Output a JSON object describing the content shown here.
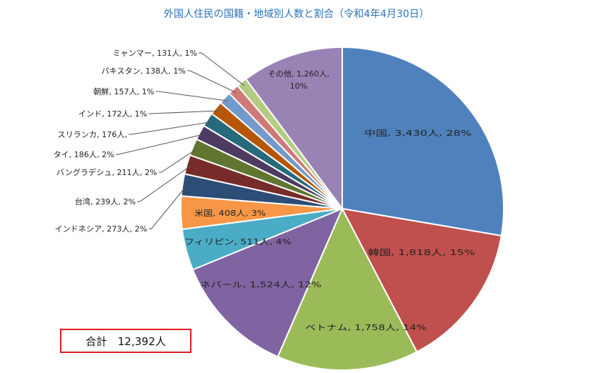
{
  "chart_data": {
    "type": "pie",
    "title": "外国人住民の国籍・地域別人数と割合（令和4年4月30日）",
    "unit": "人",
    "slices": [
      {
        "name": "中国",
        "value": 3430,
        "label": "中国, 3,430人, 28%",
        "color": "#4f81bd"
      },
      {
        "name": "韓国",
        "value": 1818,
        "label": "韓国, 1,818人, 15%",
        "color": "#c0504d"
      },
      {
        "name": "ベトナム",
        "value": 1758,
        "label": "ベトナム, 1,758人, 14%",
        "color": "#9bbb59"
      },
      {
        "name": "ネパール",
        "value": 1524,
        "label": "ネパール, 1,524人, 12%",
        "color": "#8064a2"
      },
      {
        "name": "フィリピン",
        "value": 511,
        "label": "フィリピン, 511人, 4%",
        "color": "#4bacc6"
      },
      {
        "name": "米国",
        "value": 408,
        "label": "米国, 408人, 3%",
        "color": "#f79646"
      },
      {
        "name": "インドネシア",
        "value": 273,
        "label": "インドネシア, 273人, 2%",
        "color": "#2c4d75"
      },
      {
        "name": "台湾",
        "value": 239,
        "label": "台湾, 239人, 2%",
        "color": "#772c2a"
      },
      {
        "name": "バングラデシュ",
        "value": 211,
        "label": "バングラデシュ, 211人, 2%",
        "color": "#5f7530"
      },
      {
        "name": "タイ",
        "value": 186,
        "label": "タイ, 186人, 2%",
        "color": "#4d3b62"
      },
      {
        "name": "スリランカ",
        "value": 176,
        "label": "スリランカ, 176人,",
        "color": "#276a7c"
      },
      {
        "name": "インド",
        "value": 172,
        "label": "インド, 172人, 1%",
        "color": "#b65708"
      },
      {
        "name": "朝鮮",
        "value": 157,
        "label": "朝鮮, 157人, 1%",
        "color": "#729aca"
      },
      {
        "name": "パキスタン",
        "value": 138,
        "label": "パキスタン, 138人, 1%",
        "color": "#d07a78"
      },
      {
        "name": "ミャンマー",
        "value": 131,
        "label": "ミャンマー, 131人, 1%",
        "color": "#b3cc82"
      },
      {
        "name": "その他",
        "value": 1260,
        "label": "その他, 1,260人, 10%",
        "color": "#9983b5"
      }
    ],
    "total_label": "合計　12,392人"
  }
}
